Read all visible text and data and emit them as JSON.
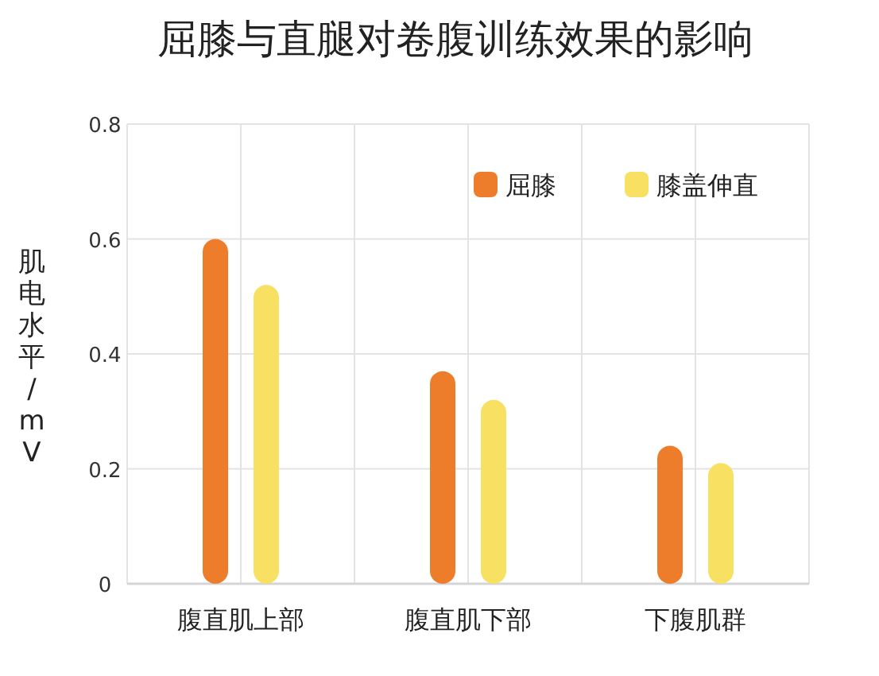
{
  "chart_data": {
    "type": "bar",
    "title": "屈膝与直腿对卷腹训练效果的影响",
    "ylabel": "肌电水平/mV",
    "categories": [
      "腹直肌上部",
      "腹直肌下部",
      "下腹肌群"
    ],
    "series": [
      {
        "name": "屈膝",
        "color": "#ee7d2b",
        "values": [
          0.6,
          0.37,
          0.24
        ]
      },
      {
        "name": "膝盖伸直",
        "color": "#f7e062",
        "values": [
          0.52,
          0.32,
          0.21
        ]
      }
    ],
    "ylim": [
      0,
      0.8
    ],
    "yticks": [
      0,
      {
        "value": 0.2,
        "label": "0.2"
      },
      {
        "value": 0.4,
        "label": "0.4"
      },
      {
        "value": 0.6,
        "label": "0.6"
      },
      {
        "value": 0.8,
        "label": "0.8"
      }
    ],
    "grid": true,
    "legend": "top right"
  }
}
